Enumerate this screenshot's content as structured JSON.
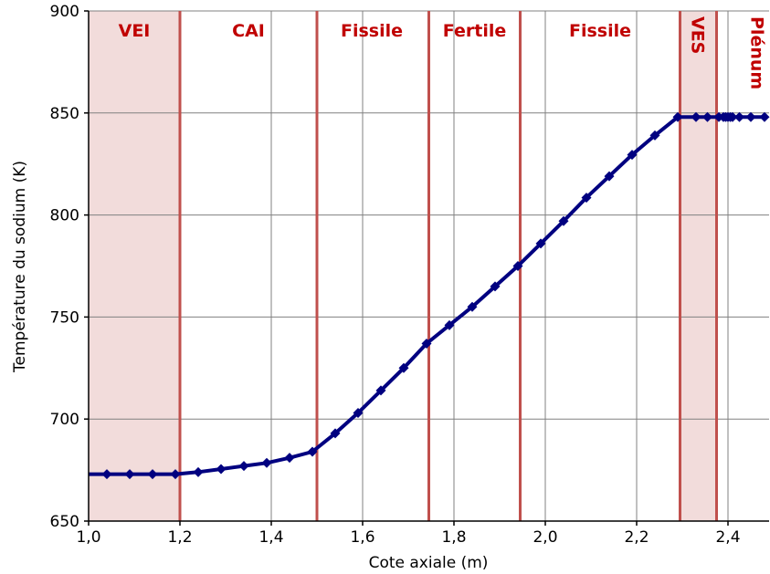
{
  "chart_data": {
    "type": "line",
    "xlabel": "Cote axiale (m)",
    "ylabel": "Température du sodium (K)",
    "xlim": [
      1.0,
      2.49
    ],
    "ylim": [
      650,
      900
    ],
    "x_ticks": [
      1.0,
      1.2,
      1.4,
      1.6,
      1.8,
      2.0,
      2.2,
      2.4
    ],
    "x_tick_labels": [
      "1,0",
      "1,2",
      "1,4",
      "1,6",
      "1,8",
      "2,0",
      "2,2",
      "2,4"
    ],
    "y_ticks": [
      650,
      700,
      750,
      800,
      850,
      900
    ],
    "y_tick_labels": [
      "650",
      "700",
      "750",
      "800",
      "850",
      "900"
    ],
    "grid": true,
    "colors": {
      "series": "#000080",
      "boundary": "#c0504d",
      "shade": "#f2dcdb",
      "zone_text": "#c00000",
      "grid": "#808080"
    },
    "zone_boundaries": [
      1.2,
      1.5,
      1.745,
      1.945,
      2.295,
      2.375
    ],
    "shaded_regions": [
      [
        1.0,
        1.2
      ],
      [
        2.295,
        2.375
      ]
    ],
    "zones": [
      {
        "label": "VEI",
        "x": 1.1,
        "vertical": false
      },
      {
        "label": "CAI",
        "x": 1.35,
        "vertical": false
      },
      {
        "label": "Fissile",
        "x": 1.62,
        "vertical": false
      },
      {
        "label": "Fertile",
        "x": 1.845,
        "vertical": false
      },
      {
        "label": "Fissile",
        "x": 2.12,
        "vertical": false
      },
      {
        "label": "VES",
        "x": 2.335,
        "vertical": true
      },
      {
        "label": "Plénum",
        "x": 2.465,
        "vertical": true
      }
    ],
    "series": [
      {
        "x": [
          1.0,
          1.04,
          1.09,
          1.14,
          1.19,
          1.24,
          1.29,
          1.34,
          1.39,
          1.44,
          1.49,
          1.54,
          1.59,
          1.64,
          1.69,
          1.74,
          1.79,
          1.84,
          1.89,
          1.94,
          1.99,
          2.04,
          2.09,
          2.14,
          2.19,
          2.24,
          2.29,
          2.33,
          2.355,
          2.38,
          2.39,
          2.395,
          2.4,
          2.405,
          2.41,
          2.425,
          2.45,
          2.48
        ],
        "y": [
          673,
          673,
          673,
          673,
          673,
          674,
          675.5,
          677,
          678.5,
          681,
          684,
          693,
          703,
          714,
          725,
          737,
          746,
          755,
          765,
          775,
          786,
          797,
          808.5,
          819,
          829.5,
          839,
          848,
          848,
          848,
          848,
          848,
          848,
          848,
          848,
          848,
          848,
          848,
          848
        ]
      }
    ]
  }
}
